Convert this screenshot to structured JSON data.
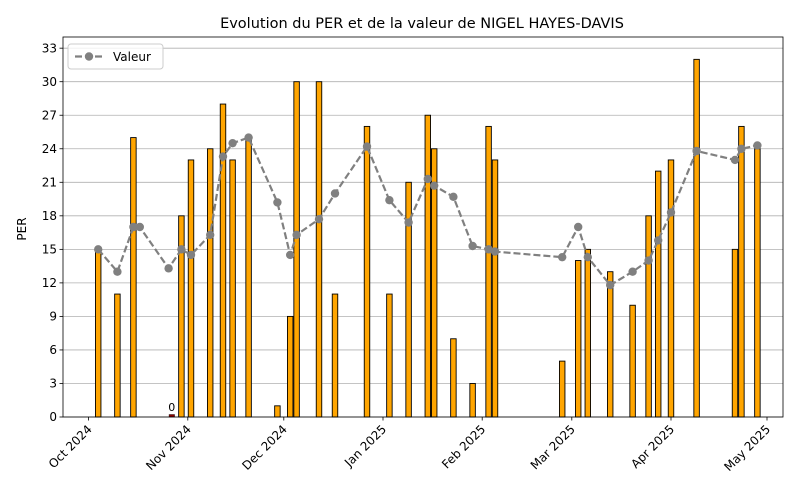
{
  "chart_data": {
    "type": "bar",
    "title": "Evolution du PER et de la valeur de NIGEL HAYES-DAVIS",
    "xlabel": "",
    "ylabel": "PER",
    "ylim": [
      0,
      34
    ],
    "xlim": [
      "2024-09-23",
      "2025-05-06"
    ],
    "yticks": [
      0,
      3,
      6,
      9,
      12,
      15,
      18,
      21,
      24,
      27,
      30,
      33
    ],
    "xticks": [
      {
        "date": "2024-10-01",
        "label": "Oct 2024"
      },
      {
        "date": "2024-11-01",
        "label": "Nov 2024"
      },
      {
        "date": "2024-12-01",
        "label": "Dec 2024"
      },
      {
        "date": "2025-01-01",
        "label": "Jan 2025"
      },
      {
        "date": "2025-02-01",
        "label": "Feb 2025"
      },
      {
        "date": "2025-03-01",
        "label": "Mar 2025"
      },
      {
        "date": "2025-04-01",
        "label": "Apr 2025"
      },
      {
        "date": "2025-05-01",
        "label": "May 2025"
      }
    ],
    "grid": "horizontal",
    "legend_position": "top-left",
    "bar_series": {
      "color": "#ffa500",
      "zero_color": "#8b0000",
      "edge_color": "#000000",
      "points": [
        {
          "x": "2024-10-04",
          "y": 15
        },
        {
          "x": "2024-10-10",
          "y": 11
        },
        {
          "x": "2024-10-15",
          "y": 25
        },
        {
          "x": "2024-10-27",
          "y": 0,
          "label": "0"
        },
        {
          "x": "2024-10-30",
          "y": 18
        },
        {
          "x": "2024-11-02",
          "y": 23
        },
        {
          "x": "2024-11-08",
          "y": 24
        },
        {
          "x": "2024-11-12",
          "y": 28
        },
        {
          "x": "2024-11-15",
          "y": 23
        },
        {
          "x": "2024-11-20",
          "y": 25
        },
        {
          "x": "2024-11-29",
          "y": 1
        },
        {
          "x": "2024-12-03",
          "y": 9
        },
        {
          "x": "2024-12-05",
          "y": 30
        },
        {
          "x": "2024-12-12",
          "y": 30
        },
        {
          "x": "2024-12-17",
          "y": 11
        },
        {
          "x": "2024-12-27",
          "y": 26
        },
        {
          "x": "2025-01-03",
          "y": 11
        },
        {
          "x": "2025-01-09",
          "y": 21
        },
        {
          "x": "2025-01-15",
          "y": 27
        },
        {
          "x": "2025-01-17",
          "y": 24
        },
        {
          "x": "2025-01-23",
          "y": 7
        },
        {
          "x": "2025-01-29",
          "y": 3
        },
        {
          "x": "2025-02-03",
          "y": 26
        },
        {
          "x": "2025-02-05",
          "y": 23
        },
        {
          "x": "2025-02-26",
          "y": 5
        },
        {
          "x": "2025-03-03",
          "y": 14
        },
        {
          "x": "2025-03-06",
          "y": 15
        },
        {
          "x": "2025-03-13",
          "y": 13
        },
        {
          "x": "2025-03-20",
          "y": 10
        },
        {
          "x": "2025-03-25",
          "y": 18
        },
        {
          "x": "2025-03-28",
          "y": 22
        },
        {
          "x": "2025-04-01",
          "y": 23
        },
        {
          "x": "2025-04-09",
          "y": 32
        },
        {
          "x": "2025-04-21",
          "y": 15
        },
        {
          "x": "2025-04-23",
          "y": 26
        },
        {
          "x": "2025-04-28",
          "y": 24
        }
      ]
    },
    "line_series": {
      "name": "Valeur",
      "color": "#808080",
      "style": "dashed",
      "marker": "circle",
      "points": [
        {
          "x": "2024-10-04",
          "y": 15
        },
        {
          "x": "2024-10-10",
          "y": 13
        },
        {
          "x": "2024-10-15",
          "y": 17
        },
        {
          "x": "2024-10-17",
          "y": 17
        },
        {
          "x": "2024-10-26",
          "y": 13.3
        },
        {
          "x": "2024-10-30",
          "y": 15
        },
        {
          "x": "2024-11-02",
          "y": 14.5
        },
        {
          "x": "2024-11-08",
          "y": 16.3
        },
        {
          "x": "2024-11-12",
          "y": 23.3
        },
        {
          "x": "2024-11-15",
          "y": 24.5
        },
        {
          "x": "2024-11-20",
          "y": 25
        },
        {
          "x": "2024-11-29",
          "y": 19.2
        },
        {
          "x": "2024-12-03",
          "y": 14.5
        },
        {
          "x": "2024-12-05",
          "y": 16.3
        },
        {
          "x": "2024-12-12",
          "y": 17.7
        },
        {
          "x": "2024-12-17",
          "y": 20
        },
        {
          "x": "2024-12-27",
          "y": 24.2
        },
        {
          "x": "2025-01-03",
          "y": 19.4
        },
        {
          "x": "2025-01-09",
          "y": 17.4
        },
        {
          "x": "2025-01-15",
          "y": 21.3
        },
        {
          "x": "2025-01-17",
          "y": 20.7
        },
        {
          "x": "2025-01-23",
          "y": 19.7
        },
        {
          "x": "2025-01-29",
          "y": 15.3
        },
        {
          "x": "2025-02-03",
          "y": 15
        },
        {
          "x": "2025-02-05",
          "y": 14.8
        },
        {
          "x": "2025-02-26",
          "y": 14.3
        },
        {
          "x": "2025-03-03",
          "y": 17
        },
        {
          "x": "2025-03-06",
          "y": 14.3
        },
        {
          "x": "2025-03-13",
          "y": 11.8
        },
        {
          "x": "2025-03-20",
          "y": 13
        },
        {
          "x": "2025-03-25",
          "y": 14
        },
        {
          "x": "2025-03-28",
          "y": 15.8
        },
        {
          "x": "2025-04-01",
          "y": 18.3
        },
        {
          "x": "2025-04-09",
          "y": 23.8
        },
        {
          "x": "2025-04-21",
          "y": 23
        },
        {
          "x": "2025-04-23",
          "y": 24
        },
        {
          "x": "2025-04-28",
          "y": 24.3
        }
      ]
    }
  }
}
